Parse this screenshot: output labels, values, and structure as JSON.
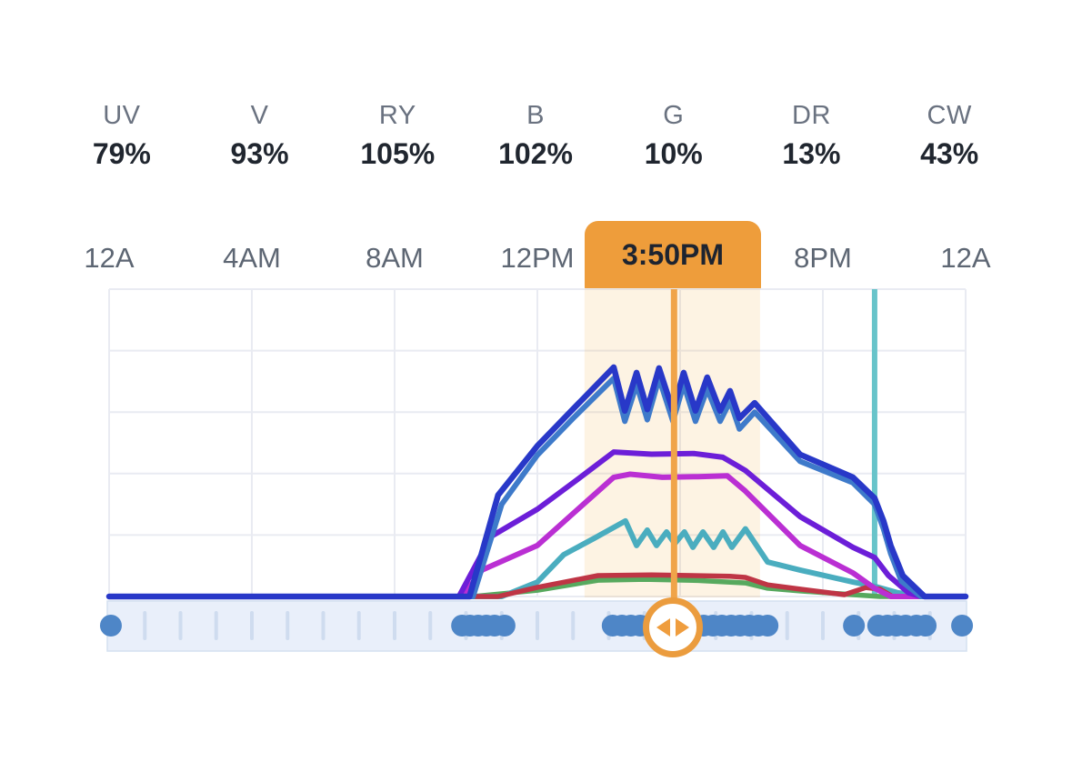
{
  "channels": [
    {
      "label": "UV",
      "value": "79%"
    },
    {
      "label": "V",
      "value": "93%"
    },
    {
      "label": "RY",
      "value": "105%"
    },
    {
      "label": "B",
      "value": "102%"
    },
    {
      "label": "G",
      "value": "10%"
    },
    {
      "label": "DR",
      "value": "13%"
    },
    {
      "label": "CW",
      "value": "43%"
    }
  ],
  "time_axis": {
    "labels": [
      {
        "text": "12A",
        "hour": 0
      },
      {
        "text": "4AM",
        "hour": 4
      },
      {
        "text": "8AM",
        "hour": 8
      },
      {
        "text": "12PM",
        "hour": 12
      },
      {
        "text": "8PM",
        "hour": 20
      },
      {
        "text": "12A",
        "hour": 24
      }
    ]
  },
  "cursor": {
    "time_label": "3:50PM",
    "hour": 15.83,
    "badge_color": "#ee9d3b",
    "line_color": "#f0a449"
  },
  "chart_data": {
    "type": "line",
    "x_unit": "hours",
    "x_range": [
      0,
      24
    ],
    "y_unit": "intensity_percent_of_chart_height",
    "y_range": [
      0,
      100
    ],
    "grid": {
      "x_step_hours": 4,
      "y_step": 20,
      "color": "#e9ebf2"
    },
    "highlight_band": {
      "start_hour": 13.32,
      "end_hour": 18.24,
      "color": "rgba(242,169,59,0.14)"
    },
    "marker_line": {
      "hour": 21.45,
      "color": "#68c4ca",
      "width": 6
    },
    "cursor_line": {
      "hour": 15.83,
      "color": "#f0a449",
      "width": 7
    },
    "series": [
      {
        "name": "green",
        "channel": "G",
        "color": "#57a95e",
        "width": 5.5,
        "points": [
          [
            0,
            0
          ],
          [
            10.2,
            0
          ],
          [
            12,
            2
          ],
          [
            13.7,
            5.3
          ],
          [
            15,
            5.6
          ],
          [
            16.5,
            5.2
          ],
          [
            17.83,
            4.4
          ],
          [
            18.45,
            2.7
          ],
          [
            19.36,
            1.8
          ],
          [
            20.84,
            0.6
          ],
          [
            21.6,
            0
          ],
          [
            24,
            0
          ]
        ]
      },
      {
        "name": "teal",
        "channel": "CW",
        "color": "#4aadbf",
        "width": 6,
        "points": [
          [
            0,
            0
          ],
          [
            11,
            0
          ],
          [
            12,
            4.7
          ],
          [
            12.74,
            13.6
          ],
          [
            13.6,
            19
          ],
          [
            14.47,
            24.6
          ],
          [
            14.78,
            16.6
          ],
          [
            15.08,
            21.6
          ],
          [
            15.34,
            16.6
          ],
          [
            15.62,
            21
          ],
          [
            15.85,
            17.2
          ],
          [
            16.12,
            21
          ],
          [
            16.36,
            16
          ],
          [
            16.64,
            21
          ],
          [
            16.94,
            16
          ],
          [
            17.2,
            21
          ],
          [
            17.45,
            16
          ],
          [
            17.83,
            22
          ],
          [
            18.45,
            11.2
          ],
          [
            19.36,
            8.6
          ],
          [
            20.84,
            4.7
          ],
          [
            21.45,
            3.3
          ],
          [
            22.1,
            1.2
          ],
          [
            22.9,
            0
          ],
          [
            24,
            0
          ]
        ]
      },
      {
        "name": "red",
        "channel": "DR",
        "color": "#bf3545",
        "width": 5.5,
        "points": [
          [
            0,
            0
          ],
          [
            10.9,
            0
          ],
          [
            12,
            3
          ],
          [
            13.7,
            6.8
          ],
          [
            15.2,
            7
          ],
          [
            17.4,
            6.6
          ],
          [
            17.83,
            6.2
          ],
          [
            18.45,
            3.8
          ],
          [
            19.36,
            2.4
          ],
          [
            20.6,
            0.6
          ],
          [
            21.2,
            2.9
          ],
          [
            21.6,
            2.4
          ],
          [
            21.95,
            0
          ],
          [
            24,
            0
          ]
        ]
      },
      {
        "name": "magenta",
        "channel": "UV",
        "color": "#ba2fd3",
        "width": 6,
        "points": [
          [
            0,
            0
          ],
          [
            9.9,
            0
          ],
          [
            10.45,
            8.6
          ],
          [
            12,
            16.6
          ],
          [
            13,
            27
          ],
          [
            14.14,
            38.8
          ],
          [
            14.6,
            39.8
          ],
          [
            15.5,
            38.8
          ],
          [
            16.5,
            39
          ],
          [
            17.32,
            39.3
          ],
          [
            17.83,
            34.3
          ],
          [
            19.36,
            16.6
          ],
          [
            20.84,
            7.7
          ],
          [
            21.45,
            2.7
          ],
          [
            21.9,
            0
          ],
          [
            24,
            0
          ]
        ]
      },
      {
        "name": "purple",
        "channel": "V",
        "color": "#6c1ed8",
        "width": 6,
        "points": [
          [
            0,
            0
          ],
          [
            9.8,
            0
          ],
          [
            10.7,
            19.5
          ],
          [
            12,
            28.4
          ],
          [
            13,
            37
          ],
          [
            14.14,
            47
          ],
          [
            15.2,
            46.3
          ],
          [
            16.4,
            46.5
          ],
          [
            17.2,
            45.3
          ],
          [
            17.83,
            41
          ],
          [
            19.36,
            26
          ],
          [
            20.84,
            16
          ],
          [
            21.45,
            12.7
          ],
          [
            21.84,
            6.8
          ],
          [
            22.4,
            1.2
          ],
          [
            22.75,
            0
          ],
          [
            24,
            0
          ]
        ]
      },
      {
        "name": "steel-blue",
        "channel": "B",
        "color": "#3e7aca",
        "width": 6,
        "points": [
          [
            0,
            0
          ],
          [
            10.2,
            0
          ],
          [
            11.0,
            30
          ],
          [
            12,
            46
          ],
          [
            13,
            58
          ],
          [
            14.14,
            71
          ],
          [
            14.45,
            57
          ],
          [
            14.78,
            69
          ],
          [
            15.08,
            57.5
          ],
          [
            15.41,
            71
          ],
          [
            15.8,
            57
          ],
          [
            16.1,
            69
          ],
          [
            16.43,
            57
          ],
          [
            16.76,
            67.5
          ],
          [
            17.12,
            57
          ],
          [
            17.4,
            63.5
          ],
          [
            17.66,
            54.5
          ],
          [
            18.09,
            60
          ],
          [
            19.36,
            44
          ],
          [
            20.84,
            37
          ],
          [
            21.45,
            30
          ],
          [
            21.7,
            22
          ],
          [
            21.9,
            14
          ],
          [
            22.2,
            5
          ],
          [
            22.75,
            0
          ],
          [
            24,
            0
          ]
        ]
      },
      {
        "name": "royal-blue",
        "channel": "RY",
        "color": "#2838c8",
        "width": 6.5,
        "points": [
          [
            0,
            0
          ],
          [
            10.1,
            0
          ],
          [
            10.9,
            33
          ],
          [
            12,
            49
          ],
          [
            13,
            61
          ],
          [
            14.14,
            74.6
          ],
          [
            14.45,
            60.4
          ],
          [
            14.78,
            72.8
          ],
          [
            15.08,
            60.9
          ],
          [
            15.41,
            74.3
          ],
          [
            15.8,
            60.4
          ],
          [
            16.1,
            72.8
          ],
          [
            16.43,
            60.4
          ],
          [
            16.76,
            71.3
          ],
          [
            17.12,
            60.4
          ],
          [
            17.4,
            66.9
          ],
          [
            17.66,
            58
          ],
          [
            18.09,
            63
          ],
          [
            19.36,
            46.2
          ],
          [
            20.84,
            38.8
          ],
          [
            21.45,
            32
          ],
          [
            21.7,
            24.6
          ],
          [
            21.9,
            16.6
          ],
          [
            22.24,
            6.8
          ],
          [
            22.85,
            0
          ],
          [
            24,
            0
          ]
        ]
      }
    ]
  },
  "scrubber": {
    "bar_color": "#e9effa",
    "border_color": "#d4e0f0",
    "tick_color": "#cfdcef",
    "dot_color": "#4e86c7",
    "tick_hours_start": 1,
    "tick_hours_end": 23,
    "dots_hours": [
      0.05,
      9.89,
      10.11,
      10.34,
      10.57,
      10.8,
      11.08,
      14.11,
      14.37,
      14.62,
      14.88,
      15.13,
      15.39,
      15.64,
      15.9,
      16.15,
      16.41,
      16.66,
      16.92,
      17.17,
      17.43,
      17.68,
      17.94,
      18.19,
      18.45,
      20.87,
      21.55,
      21.81,
      22.06,
      22.32,
      22.62,
      22.88,
      23.9
    ],
    "handle": {
      "arrow_color": "#ef9d3e",
      "ring_color": "#eb9c3e"
    }
  }
}
